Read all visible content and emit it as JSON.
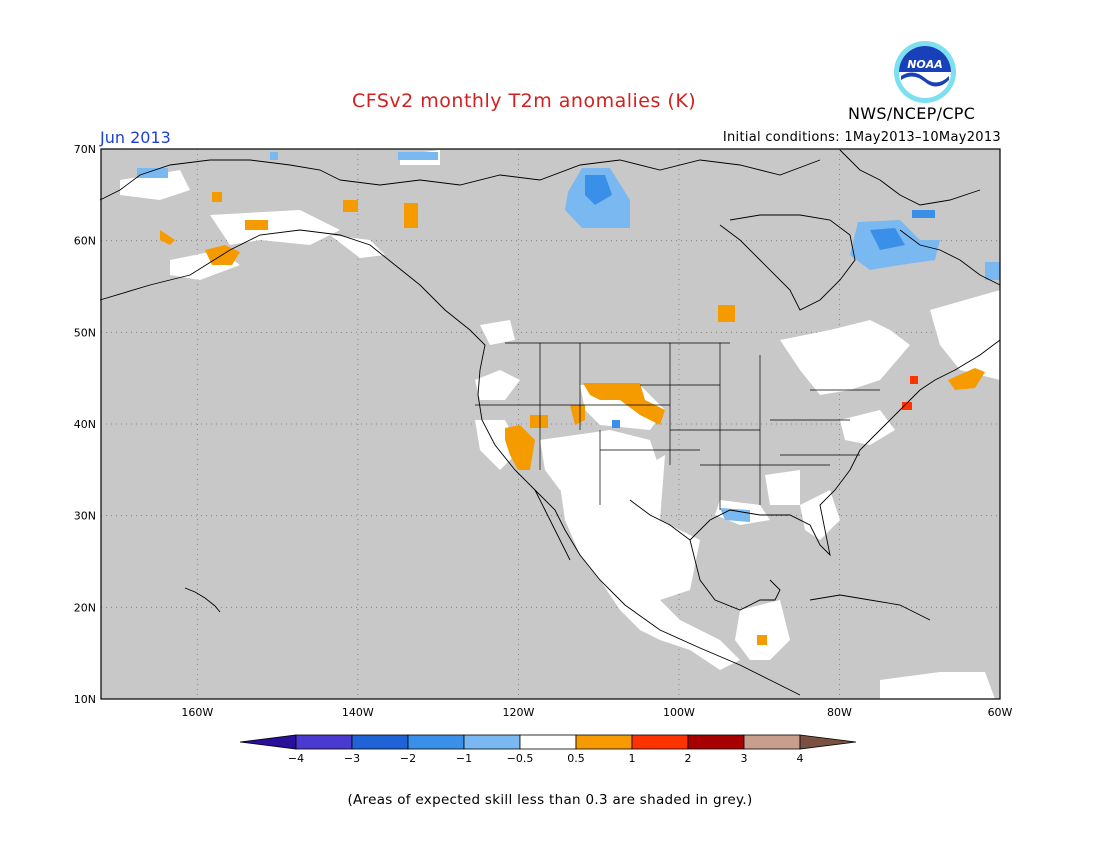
{
  "header": {
    "title": "CFSv2 monthly T2m anomalies (K)",
    "month": "Jun 2013",
    "initial_conditions": "Initial conditions: 1May2013–10May2013",
    "agency": "NWS/NCEP/CPC",
    "logo_text": "NOAA"
  },
  "map": {
    "lon_range": [
      -172,
      -60
    ],
    "lat_range": [
      10,
      70
    ],
    "lat_ticks": [
      "10N",
      "20N",
      "30N",
      "40N",
      "50N",
      "60N",
      "70N"
    ],
    "lon_ticks": [
      "160W",
      "140W",
      "120W",
      "100W",
      "80W",
      "60W"
    ],
    "background_color": "#c8c8c8",
    "gridlines": true
  },
  "legend": {
    "ticks": [
      "−4",
      "−3",
      "−2",
      "−1",
      "−0.5",
      "0.5",
      "1",
      "2",
      "3",
      "4"
    ],
    "colors": [
      "#2a0f9a",
      "#4a3ad0",
      "#1f63d6",
      "#3a8fe8",
      "#79b8f0",
      "#ffffff",
      "#f59b00",
      "#ff3300",
      "#a80000",
      "#c89f8c",
      "#7a5040"
    ]
  },
  "footnote": "(Areas of expected skill less than 0.3 are shaded in grey.)"
}
